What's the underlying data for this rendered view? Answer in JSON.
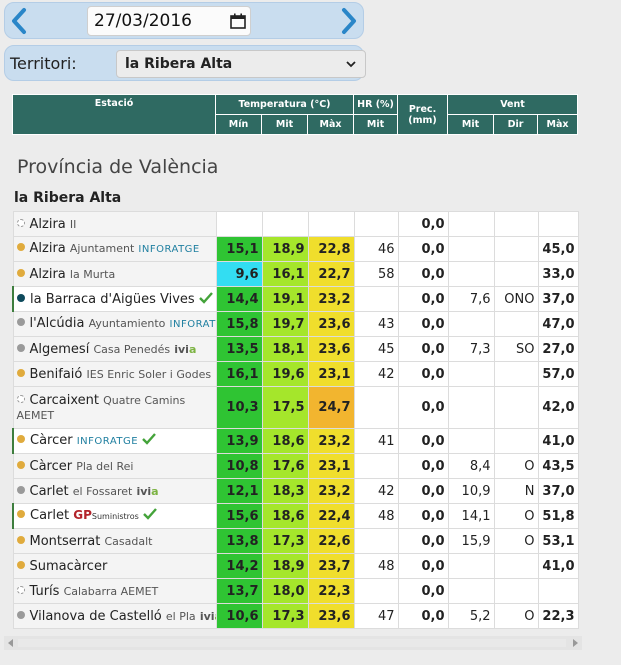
{
  "date": {
    "value": "27/03/2016"
  },
  "territori": {
    "label": "Territori:",
    "selected": "la Ribera Alta"
  },
  "table_header": {
    "estacio": "Estació",
    "temperatura": "Temperatura (°C)",
    "hr": "HR (%)",
    "prec": "Prec. (mm)",
    "vent": "Vent",
    "sub": [
      "Mín",
      "Mit",
      "Màx",
      "Mit",
      "Mit",
      "Dir",
      "Màx"
    ]
  },
  "province": "Província de València",
  "region": "la Ribera Alta",
  "rows": [
    {
      "dot": "empty",
      "name": "Alzira",
      "sub": "II",
      "brand": "",
      "check": false,
      "tall": false,
      "min": "",
      "mit": "",
      "max": "",
      "hr": "",
      "prec": "0,0",
      "vmit": "",
      "dir": "",
      "vmax": ""
    },
    {
      "dot": "orange",
      "name": "Alzira",
      "sub": "Ajuntament",
      "brand": "info",
      "check": false,
      "tall": false,
      "min": "15,1",
      "mit": "18,9",
      "max": "22,8",
      "hr": "46",
      "prec": "0,0",
      "vmit": "",
      "dir": "",
      "vmax": "45,0"
    },
    {
      "dot": "orange",
      "name": "Alzira",
      "sub": "la Murta",
      "brand": "",
      "check": false,
      "tall": false,
      "min": "9,6",
      "mit": "16,1",
      "max": "22,7",
      "hr": "58",
      "prec": "0,0",
      "vmit": "",
      "dir": "",
      "vmax": "33,0"
    },
    {
      "dot": "navy",
      "name": "la Barraca d'Aigües Vives",
      "sub": "",
      "brand": "",
      "check": true,
      "tall": false,
      "min": "14,4",
      "mit": "19,1",
      "max": "23,2",
      "hr": "",
      "prec": "0,0",
      "vmit": "7,6",
      "dir": "ONO",
      "vmax": "37,0"
    },
    {
      "dot": "gray",
      "name": "l'Alcúdia",
      "sub": "Ayuntamiento",
      "brand": "info",
      "check": false,
      "tall": false,
      "min": "15,8",
      "mit": "19,7",
      "max": "23,6",
      "hr": "43",
      "prec": "0,0",
      "vmit": "",
      "dir": "",
      "vmax": "47,0"
    },
    {
      "dot": "gray",
      "name": "Algemesí",
      "sub": "Casa Penedés",
      "brand": "ivia",
      "check": false,
      "tall": false,
      "min": "13,5",
      "mit": "18,1",
      "max": "23,6",
      "hr": "45",
      "prec": "0,0",
      "vmit": "7,3",
      "dir": "SO",
      "vmax": "27,0"
    },
    {
      "dot": "orange",
      "name": "Benifaió",
      "sub": "IES Enric Soler i Godes",
      "brand": "",
      "check": false,
      "tall": false,
      "min": "16,1",
      "mit": "19,6",
      "max": "23,1",
      "hr": "42",
      "prec": "0,0",
      "vmit": "",
      "dir": "",
      "vmax": "57,0"
    },
    {
      "dot": "empty",
      "name": "Carcaixent",
      "sub": "Quatre Camins AEMET",
      "brand": "",
      "check": false,
      "tall": true,
      "min": "10,3",
      "mit": "17,5",
      "max": "24,7",
      "hr": "",
      "prec": "0,0",
      "vmit": "",
      "dir": "",
      "vmax": "42,0"
    },
    {
      "dot": "orange",
      "name": "Càrcer",
      "sub": "",
      "brand": "info",
      "check": true,
      "tall": false,
      "min": "13,9",
      "mit": "18,6",
      "max": "23,2",
      "hr": "41",
      "prec": "0,0",
      "vmit": "",
      "dir": "",
      "vmax": "41,0"
    },
    {
      "dot": "orange",
      "name": "Càrcer",
      "sub": "Pla del Rei",
      "brand": "",
      "check": false,
      "tall": false,
      "min": "10,8",
      "mit": "17,6",
      "max": "23,1",
      "hr": "",
      "prec": "0,0",
      "vmit": "8,4",
      "dir": "O",
      "vmax": "43,5"
    },
    {
      "dot": "gray",
      "name": "Carlet",
      "sub": "el Fossaret",
      "brand": "ivia",
      "check": false,
      "tall": false,
      "min": "12,1",
      "mit": "18,3",
      "max": "23,2",
      "hr": "42",
      "prec": "0,0",
      "vmit": "10,9",
      "dir": "N",
      "vmax": "37,0"
    },
    {
      "dot": "orange",
      "name": "Carlet",
      "sub": "",
      "brand": "gp",
      "check": true,
      "tall": false,
      "min": "15,6",
      "mit": "18,6",
      "max": "22,4",
      "hr": "48",
      "prec": "0,0",
      "vmit": "14,1",
      "dir": "O",
      "vmax": "51,8"
    },
    {
      "dot": "orange",
      "name": "Montserrat",
      "sub": "Casadalt",
      "brand": "",
      "check": false,
      "tall": false,
      "min": "13,8",
      "mit": "17,3",
      "max": "22,6",
      "hr": "",
      "prec": "0,0",
      "vmit": "15,9",
      "dir": "O",
      "vmax": "53,1"
    },
    {
      "dot": "orange",
      "name": "Sumacàrcer",
      "sub": "",
      "brand": "",
      "check": false,
      "tall": false,
      "min": "14,2",
      "mit": "18,9",
      "max": "23,7",
      "hr": "48",
      "prec": "0,0",
      "vmit": "",
      "dir": "",
      "vmax": "41,0"
    },
    {
      "dot": "empty",
      "name": "Turís",
      "sub": "Calabarra AEMET",
      "brand": "",
      "check": false,
      "tall": false,
      "min": "13,7",
      "mit": "18,0",
      "max": "22,3",
      "hr": "",
      "prec": "0,0",
      "vmit": "",
      "dir": "",
      "vmax": ""
    },
    {
      "dot": "gray",
      "name": "Vilanova de Castelló",
      "sub": "el Pla",
      "brand": "ivia",
      "check": false,
      "tall": false,
      "min": "10,6",
      "mit": "17,3",
      "max": "23,6",
      "hr": "47",
      "prec": "0,0",
      "vmit": "5,2",
      "dir": "O",
      "vmax": "22,3"
    }
  ],
  "brands": {
    "info": "INFORATGE",
    "ivia_a": "ivi",
    "ivia_b": "a",
    "gp": "GP",
    "gp_sub": "Suministros"
  },
  "colors": {
    "header_bg": "#2f6a62",
    "min_cool": "#33ddf2",
    "min_normal": "#2fc433",
    "mit": "#a5e62b",
    "max_normal": "#f0de2c",
    "max_warm": "#f2b52f",
    "check": "#44a33a",
    "arrow": "#2a86c8"
  }
}
